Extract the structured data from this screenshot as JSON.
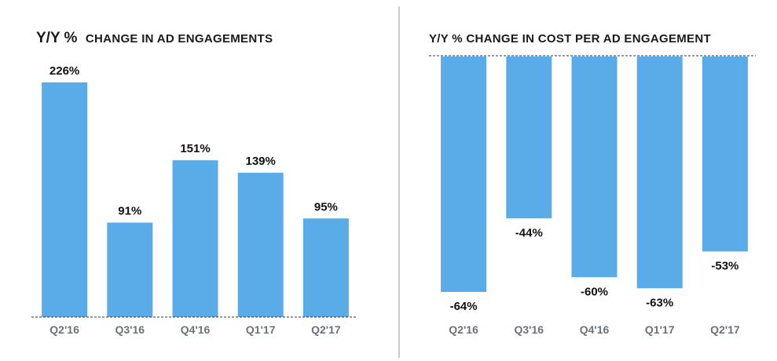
{
  "chart_data": [
    {
      "type": "bar",
      "title_prefix": "Y/Y %",
      "title": "CHANGE IN AD ENGAGEMENTS",
      "categories": [
        "Q2'16",
        "Q3'16",
        "Q4'16",
        "Q1'17",
        "Q2'17"
      ],
      "values": [
        226,
        91,
        151,
        139,
        95
      ],
      "data_labels": [
        "226%",
        "91%",
        "151%",
        "139%",
        "95%"
      ],
      "ylim": [
        0,
        226
      ],
      "xlabel": "",
      "ylabel": "",
      "grid": false
    },
    {
      "type": "bar",
      "title": "Y/Y % CHANGE IN COST PER AD ENGAGEMENT",
      "categories": [
        "Q2'16",
        "Q3'16",
        "Q4'16",
        "Q1'17",
        "Q2'17"
      ],
      "values": [
        -64,
        -44,
        -60,
        -63,
        -53
      ],
      "data_labels": [
        "-64%",
        "-44%",
        "-60%",
        "-63%",
        "-53%"
      ],
      "ylim": [
        -64,
        0
      ],
      "xlabel": "",
      "ylabel": "",
      "grid": false
    }
  ],
  "colors": {
    "bar": "#5aace8",
    "divider": "#c9cdd2",
    "tick_label": "#6d7278"
  }
}
